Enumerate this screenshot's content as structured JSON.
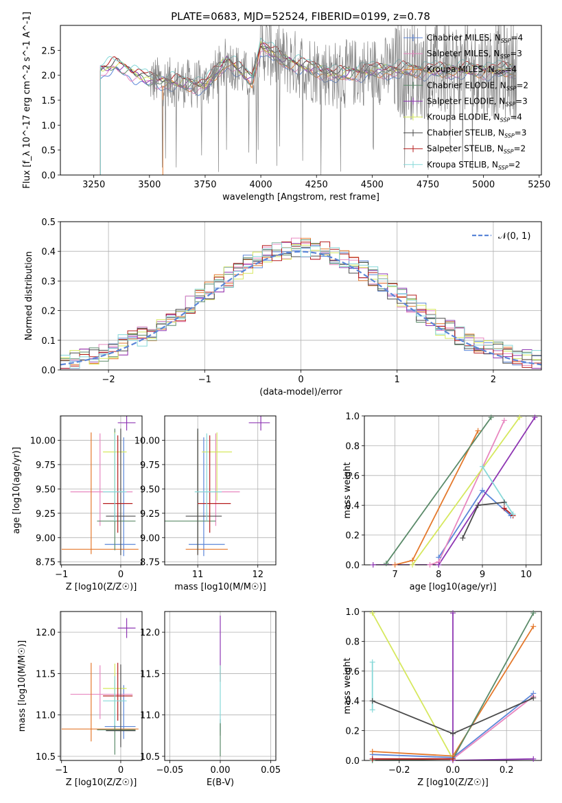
{
  "figure": {
    "title": "PLATE=0683, MJD=52524, FIBERID=0199, z=0.78"
  },
  "series": [
    {
      "name": "Chabrier MILES",
      "nssp": "4",
      "color": "#5b86d8"
    },
    {
      "name": "Salpeter MILES",
      "nssp": "3",
      "color": "#e887c0"
    },
    {
      "name": "Kroupa MILES",
      "nssp": "4",
      "color": "#e4782b"
    },
    {
      "name": "Chabrier ELODIE",
      "nssp": "2",
      "color": "#5a8a69"
    },
    {
      "name": "Salpeter ELODIE",
      "nssp": "3",
      "color": "#8e36b3"
    },
    {
      "name": "Kroupa ELODIE",
      "nssp": "4",
      "color": "#d6e85e"
    },
    {
      "name": "Chabrier STELIB",
      "nssp": "3",
      "color": "#4b4b4b"
    },
    {
      "name": "Salpeter STELIB",
      "nssp": "2",
      "color": "#b51c1c"
    },
    {
      "name": "Kroupa STELIB",
      "nssp": "2",
      "color": "#86d8d8"
    }
  ],
  "chart_data": [
    {
      "type": "line",
      "panel": "spectrum",
      "xlabel": "wavelength [Angstrom, rest frame]",
      "ylabel": "Flux [f_λ 10^-17 erg cm^-2 s^-1 A^-1]",
      "xlim": [
        3100,
        5260
      ],
      "ylim": [
        0,
        3.0
      ],
      "xticks": [
        3250,
        3500,
        3750,
        4000,
        4250,
        4500,
        4750,
        5000,
        5250
      ],
      "yticks": [
        0.0,
        0.5,
        1.0,
        1.5,
        2.0,
        2.5
      ],
      "data_wavelength_range": [
        3500,
        5150
      ],
      "data_flux_range": [
        0.0,
        3.0
      ],
      "model_levels_approx": [
        {
          "x": 3280,
          "y": 2.1
        },
        {
          "x": 3350,
          "y": 2.2
        },
        {
          "x": 3500,
          "y": 1.9
        },
        {
          "x": 3750,
          "y": 1.8
        },
        {
          "x": 3850,
          "y": 2.3
        },
        {
          "x": 3960,
          "y": 1.9
        },
        {
          "x": 4000,
          "y": 2.6
        },
        {
          "x": 4100,
          "y": 2.3
        },
        {
          "x": 4340,
          "y": 2.0
        },
        {
          "x": 4500,
          "y": 2.1
        },
        {
          "x": 4860,
          "y": 2.1
        },
        {
          "x": 5150,
          "y": 2.1
        }
      ],
      "legend": "upper right"
    },
    {
      "type": "histogram",
      "panel": "residuals",
      "xlabel": "(data-model)/error",
      "ylabel": "Normed distribution",
      "xlim": [
        -2.5,
        2.5
      ],
      "ylim": [
        0,
        0.5
      ],
      "xticks": [
        -2,
        -1,
        0,
        1,
        2
      ],
      "yticks": [
        0.0,
        0.1,
        0.2,
        0.3,
        0.4,
        0.5
      ],
      "reference": {
        "name": "N(0,1)",
        "mean": 0,
        "sigma": 1,
        "style": "dashed",
        "color": "#5b86d8"
      },
      "bin_width": 0.1,
      "grid": true,
      "legend": "upper right"
    },
    {
      "type": "scatter",
      "panel": "age-vs-metallicity",
      "xlabel": "Z [log10(Z/Z☉)]",
      "ylabel": "age [log10(age/yr)]",
      "xlim": [
        -1.02,
        0.36
      ],
      "ylim": [
        8.72,
        10.25
      ],
      "xticks": [
        -1,
        0
      ],
      "yticks": [
        8.75,
        9.0,
        9.25,
        9.5,
        9.75,
        10.0
      ],
      "points": [
        {
          "series": 0,
          "x": 0.05,
          "y": 8.93,
          "xerr": [
            0.32,
            0.2
          ],
          "yerr": [
            0.12,
            1.1
          ]
        },
        {
          "series": 1,
          "x": -0.35,
          "y": 9.47,
          "xerr": [
            0.5,
            0.55
          ],
          "yerr": [
            0.35,
            0.6
          ]
        },
        {
          "series": 2,
          "x": -0.5,
          "y": 8.88,
          "xerr": [
            0.5,
            0.8
          ],
          "yerr": [
            0.05,
            1.2
          ]
        },
        {
          "series": 3,
          "x": -0.1,
          "y": 9.17,
          "xerr": [
            0.3,
            0.35
          ],
          "yerr": [
            0.3,
            0.95
          ]
        },
        {
          "series": 4,
          "x": 0.1,
          "y": 10.18,
          "xerr": [
            0.15,
            0.15
          ],
          "yerr": [
            0.08,
            0.08
          ]
        },
        {
          "series": 5,
          "x": -0.1,
          "y": 9.88,
          "xerr": [
            0.2,
            0.2
          ],
          "yerr": [
            0.5,
            0.2
          ]
        },
        {
          "series": 6,
          "x": 0.0,
          "y": 9.22,
          "xerr": [
            0.25,
            0.25
          ],
          "yerr": [
            0.4,
            0.9
          ]
        },
        {
          "series": 7,
          "x": -0.05,
          "y": 9.35,
          "xerr": [
            0.25,
            0.25
          ],
          "yerr": [
            0.3,
            0.7
          ]
        },
        {
          "series": 8,
          "x": -0.1,
          "y": 9.47,
          "xerr": [
            0.2,
            0.2
          ],
          "yerr": [
            0.3,
            0.6
          ]
        }
      ],
      "grid": true
    },
    {
      "type": "scatter",
      "panel": "age-vs-mass",
      "xlabel": "mass [log10(M/M☉)]",
      "ylabel": "",
      "xlim": [
        10.45,
        12.3
      ],
      "ylim": [
        8.72,
        10.25
      ],
      "xticks": [
        11,
        12
      ],
      "yticks": [
        8.75,
        9.0,
        9.25,
        9.5,
        9.75,
        10.0
      ],
      "points": [
        {
          "series": 0,
          "x": 11.1,
          "y": 8.93,
          "xerr": [
            0.25,
            0.35
          ],
          "yerr": [
            0.12,
            1.1
          ]
        },
        {
          "series": 1,
          "x": 11.3,
          "y": 9.47,
          "xerr": [
            0.3,
            0.4
          ],
          "yerr": [
            0.35,
            0.6
          ]
        },
        {
          "series": 2,
          "x": 11.0,
          "y": 8.88,
          "xerr": [
            0.2,
            0.5
          ],
          "yerr": [
            0.05,
            1.2
          ]
        },
        {
          "series": 3,
          "x": 11.0,
          "y": 9.17,
          "xerr": [
            0.55,
            0.3
          ],
          "yerr": [
            0.3,
            0.95
          ]
        },
        {
          "series": 4,
          "x": 12.05,
          "y": 10.18,
          "xerr": [
            0.2,
            0.15
          ],
          "yerr": [
            0.08,
            0.08
          ]
        },
        {
          "series": 5,
          "x": 11.32,
          "y": 9.88,
          "xerr": [
            0.25,
            0.25
          ],
          "yerr": [
            0.5,
            0.2
          ]
        },
        {
          "series": 6,
          "x": 11.0,
          "y": 9.22,
          "xerr": [
            0.2,
            0.4
          ],
          "yerr": [
            0.4,
            0.9
          ]
        },
        {
          "series": 7,
          "x": 11.2,
          "y": 9.35,
          "xerr": [
            0.2,
            0.35
          ],
          "yerr": [
            0.3,
            0.7
          ]
        },
        {
          "series": 8,
          "x": 11.15,
          "y": 9.47,
          "xerr": [
            0.2,
            0.25
          ],
          "yerr": [
            0.3,
            0.6
          ]
        }
      ],
      "grid": true
    },
    {
      "type": "line",
      "panel": "mass-weight-vs-age",
      "xlabel": "age [log10(age/yr)]",
      "ylabel": "mass weight",
      "xlim": [
        6.3,
        10.35
      ],
      "ylim": [
        0,
        1.0
      ],
      "xticks": [
        7,
        8,
        9,
        10
      ],
      "yticks": [
        0.0,
        0.2,
        0.4,
        0.6,
        0.8,
        1.0
      ],
      "lines": [
        {
          "series": 0,
          "x": [
            8.0,
            9.0,
            9.65
          ],
          "y": [
            0.05,
            0.5,
            0.33
          ]
        },
        {
          "series": 1,
          "x": [
            7.8,
            8.0,
            9.5
          ],
          "y": [
            0.0,
            0.02,
            0.97
          ]
        },
        {
          "series": 2,
          "x": [
            7.0,
            7.4,
            8.9
          ],
          "y": [
            0.0,
            0.03,
            0.9
          ]
        },
        {
          "series": 3,
          "x": [
            6.8,
            9.2
          ],
          "y": [
            0.01,
            0.99
          ]
        },
        {
          "series": 4,
          "x": [
            6.5,
            8.0,
            10.2
          ],
          "y": [
            0.0,
            0.0,
            0.99
          ]
        },
        {
          "series": 5,
          "x": [
            7.4,
            9.85
          ],
          "y": [
            0.0,
            0.99
          ]
        },
        {
          "series": 6,
          "x": [
            8.55,
            8.9,
            9.5
          ],
          "y": [
            0.18,
            0.4,
            0.42
          ]
        },
        {
          "series": 7,
          "x": [
            9.5,
            9.7
          ],
          "y": [
            0.38,
            0.33
          ]
        },
        {
          "series": 8,
          "x": [
            9.0,
            9.7
          ],
          "y": [
            0.66,
            0.34
          ]
        }
      ],
      "grid": true
    },
    {
      "type": "scatter",
      "panel": "mass-vs-metallicity",
      "xlabel": "Z [log10(Z/Z☉)]",
      "ylabel": "mass [log10(M/M☉)]",
      "xlim": [
        -1.02,
        0.36
      ],
      "ylim": [
        10.45,
        12.25
      ],
      "xticks": [
        -1,
        0
      ],
      "yticks": [
        10.5,
        11.0,
        11.5,
        12.0
      ],
      "points": [
        {
          "series": 0,
          "x": 0.05,
          "y": 10.86,
          "xerr": [
            0.32,
            0.2
          ],
          "yerr": [
            0.15,
            0.5
          ]
        },
        {
          "series": 1,
          "x": -0.35,
          "y": 11.25,
          "xerr": [
            0.5,
            0.55
          ],
          "yerr": [
            0.3,
            0.35
          ]
        },
        {
          "series": 2,
          "x": -0.5,
          "y": 10.83,
          "xerr": [
            0.5,
            0.8
          ],
          "yerr": [
            0.15,
            0.8
          ]
        },
        {
          "series": 3,
          "x": -0.1,
          "y": 10.82,
          "xerr": [
            0.3,
            0.35
          ],
          "yerr": [
            0.3,
            0.6
          ]
        },
        {
          "series": 4,
          "x": 0.1,
          "y": 12.05,
          "xerr": [
            0.15,
            0.15
          ],
          "yerr": [
            0.12,
            0.12
          ]
        },
        {
          "series": 5,
          "x": -0.1,
          "y": 11.32,
          "xerr": [
            0.2,
            0.2
          ],
          "yerr": [
            0.3,
            0.3
          ]
        },
        {
          "series": 6,
          "x": 0.0,
          "y": 10.81,
          "xerr": [
            0.25,
            0.25
          ],
          "yerr": [
            0.2,
            0.8
          ]
        },
        {
          "series": 7,
          "x": -0.05,
          "y": 11.23,
          "xerr": [
            0.25,
            0.25
          ],
          "yerr": [
            0.3,
            0.4
          ]
        },
        {
          "series": 8,
          "x": -0.1,
          "y": 11.17,
          "xerr": [
            0.2,
            0.2
          ],
          "yerr": [
            0.3,
            0.3
          ]
        }
      ],
      "grid": true
    },
    {
      "type": "scatter",
      "panel": "mass-vs-extinction",
      "xlabel": "E(B-V)",
      "ylabel": "",
      "xlim": [
        -0.055,
        0.055
      ],
      "ylim": [
        10.45,
        12.25
      ],
      "xticks": [
        -0.05,
        0.0,
        0.05
      ],
      "yticks": [
        10.5,
        11.0,
        11.5,
        12.0
      ],
      "points": [
        {
          "series": 4,
          "x": 0.0,
          "y": 11.9,
          "yerr": [
            0.3,
            0.3
          ]
        },
        {
          "series": 7,
          "x": 0.0,
          "y": 11.5,
          "yerr": [
            0.1,
            0.1
          ]
        },
        {
          "series": 6,
          "x": 0.0,
          "y": 10.85,
          "yerr": [
            0.1,
            0.1
          ]
        },
        {
          "series": 8,
          "x": 0.0,
          "y": 11.2,
          "yerr": [
            0.4,
            0.4
          ]
        },
        {
          "series": 3,
          "x": 0.0,
          "y": 10.7,
          "yerr": [
            0.2,
            0.2
          ]
        }
      ],
      "grid": true
    },
    {
      "type": "line",
      "panel": "mass-weight-vs-metallicity",
      "xlabel": "Z [log10(Z/Z☉)]",
      "ylabel": "mass weight",
      "xlim": [
        -0.33,
        0.33
      ],
      "ylim": [
        0,
        1.0
      ],
      "xticks": [
        -0.2,
        0.0,
        0.2
      ],
      "yticks": [
        0.0,
        0.2,
        0.4,
        0.6,
        0.8,
        1.0
      ],
      "lines": [
        {
          "series": 0,
          "x": [
            -0.3,
            0.0,
            0.3
          ],
          "y": [
            0.04,
            0.02,
            0.45
          ]
        },
        {
          "series": 1,
          "x": [
            -0.3,
            0.0,
            0.3
          ],
          "y": [
            0.01,
            0.01,
            0.43
          ]
        },
        {
          "series": 2,
          "x": [
            -0.3,
            0.0,
            0.3
          ],
          "y": [
            0.06,
            0.03,
            0.9
          ]
        },
        {
          "series": 3,
          "x": [
            -0.3,
            0.0,
            0.3
          ],
          "y": [
            0.0,
            0.01,
            0.99
          ]
        },
        {
          "series": 4,
          "x": [
            0.0,
            0.0,
            0.3
          ],
          "y": [
            0.99,
            0.0,
            0.01
          ]
        },
        {
          "series": 5,
          "x": [
            -0.3,
            0.0
          ],
          "y": [
            0.99,
            0.01
          ]
        },
        {
          "series": 6,
          "x": [
            -0.3,
            0.0,
            0.3
          ],
          "y": [
            0.4,
            0.18,
            0.42
          ]
        },
        {
          "series": 7,
          "x": [
            -0.3,
            0.0
          ],
          "y": [
            0.01,
            0.01
          ]
        },
        {
          "series": 8,
          "x": [
            -0.3,
            -0.3
          ],
          "y": [
            0.66,
            0.34
          ]
        }
      ],
      "grid": true
    }
  ]
}
